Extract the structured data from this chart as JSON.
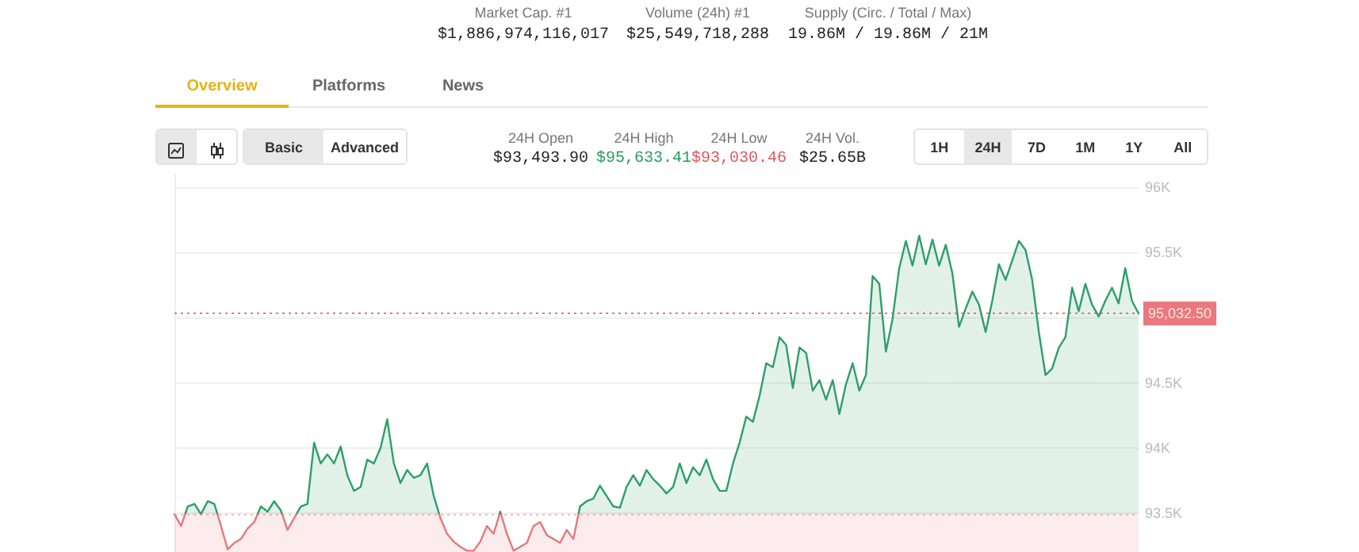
{
  "chart_data": {
    "type": "area",
    "annotations": [
      "Market Cap. #1",
      "$1,886,974,116,017",
      "Volume (24h) #1",
      "$25,549,718,288",
      "Supply (Circ. / Total / Max)",
      "19.86M / 19.86M / 21M",
      "Overview",
      "Platforms",
      "News",
      "Basic",
      "Advanced",
      "24H Open",
      "$93,493.90",
      "24H High",
      "$95,633.41",
      "24H Low",
      "$93,030.46",
      "24H Vol.",
      "$25.65B",
      "1H",
      "24H",
      "7D",
      "1M",
      "1Y",
      "All"
    ],
    "categories": [
      null,
      null,
      null,
      null,
      null,
      null,
      null,
      null,
      null,
      null,
      null,
      null,
      null,
      null,
      null,
      null,
      null,
      null,
      null,
      null,
      null,
      null,
      null,
      null,
      null,
      null,
      null,
      null,
      null,
      null,
      null,
      null,
      null,
      null,
      null,
      null,
      null,
      null,
      null,
      null,
      null,
      null,
      null,
      null,
      null,
      null,
      null,
      null,
      null,
      null,
      null,
      null,
      null,
      null,
      null,
      null,
      null,
      null,
      null,
      null,
      null,
      null,
      null,
      null,
      null,
      null,
      null,
      null,
      null,
      null,
      null,
      null,
      null,
      null,
      null,
      null,
      null,
      null,
      null,
      null,
      null,
      null,
      null,
      null,
      null,
      null,
      null,
      null,
      null,
      null,
      null,
      null,
      null,
      null,
      null,
      null,
      null,
      null,
      null,
      null,
      null,
      null,
      null,
      null,
      null,
      null,
      null,
      null,
      null,
      null,
      null,
      null,
      null,
      null,
      null,
      null,
      null,
      null,
      null,
      null,
      null,
      null,
      null,
      null,
      null,
      null,
      null,
      null,
      null,
      null,
      null,
      null,
      null,
      null,
      null,
      null,
      null,
      null,
      null,
      null,
      null,
      null,
      null,
      null,
      null,
      null
    ],
    "series": [
      {
        "color": "#2e9e6a",
        "values": [
          93490,
          93400,
          93550,
          93570,
          93490,
          93590,
          93570,
          93400,
          93220,
          93270,
          93300,
          93380,
          93430,
          93550,
          93510,
          93590,
          93520,
          93370,
          93460,
          93550,
          93570,
          94040,
          93880,
          93950,
          93880,
          94010,
          93790,
          93670,
          93700,
          93910,
          93880,
          94000,
          94220,
          93880,
          93730,
          93830,
          93770,
          93790,
          93880,
          93630,
          93460,
          93340,
          93280,
          93240,
          93210,
          93210,
          93280,
          93400,
          93340,
          93510,
          93340,
          93210,
          93240,
          93270,
          93400,
          93430,
          93330,
          93300,
          93270,
          93370,
          93300,
          93550,
          93590,
          93610,
          93710,
          93630,
          93550,
          93540,
          93700,
          93790,
          93710,
          93830,
          93760,
          93710,
          93650,
          93700,
          93880,
          93730,
          93850,
          93790,
          93910,
          93760,
          93670,
          93670,
          93880,
          94040,
          94240,
          94200,
          94400,
          94650,
          94620,
          94850,
          94790,
          94460,
          94770,
          94730,
          94440,
          94520,
          94370,
          94520,
          94260,
          94490,
          94650,
          94440,
          94560,
          95320,
          95260,
          94740,
          94990,
          95380,
          95590,
          95400,
          95630,
          95410,
          95600,
          95400,
          95560,
          95340,
          94930,
          95070,
          95200,
          95100,
          94890,
          95130,
          95410,
          95290,
          95440,
          95590,
          95520,
          95290,
          94890,
          94560,
          94610,
          94770,
          94850,
          95230,
          95050,
          95260,
          95100,
          95010,
          95130,
          95230,
          95110,
          95380,
          95130,
          95032.5
        ]
      }
    ],
    "ylim": [
      93200,
      96100
    ],
    "yticks": [
      {
        "value": 93500,
        "label": "93.5K"
      },
      {
        "value": 94000,
        "label": "94K"
      },
      {
        "value": 94500,
        "label": "94.5K"
      },
      {
        "value": 95000,
        "label": null
      },
      {
        "value": 95500,
        "label": "95.5K"
      },
      {
        "value": 96000,
        "label": "96K"
      }
    ],
    "grid": "y",
    "marker": "none",
    "line_style": "solid",
    "ref_lines": [
      {
        "axis": "y",
        "value": 93493.9,
        "line_style": "dotted",
        "color": "#e5787c"
      },
      {
        "axis": "y",
        "value": 95032.5,
        "label": "95,032.50",
        "line_style": "dotted",
        "color": "#e5565c"
      }
    ]
  }
}
